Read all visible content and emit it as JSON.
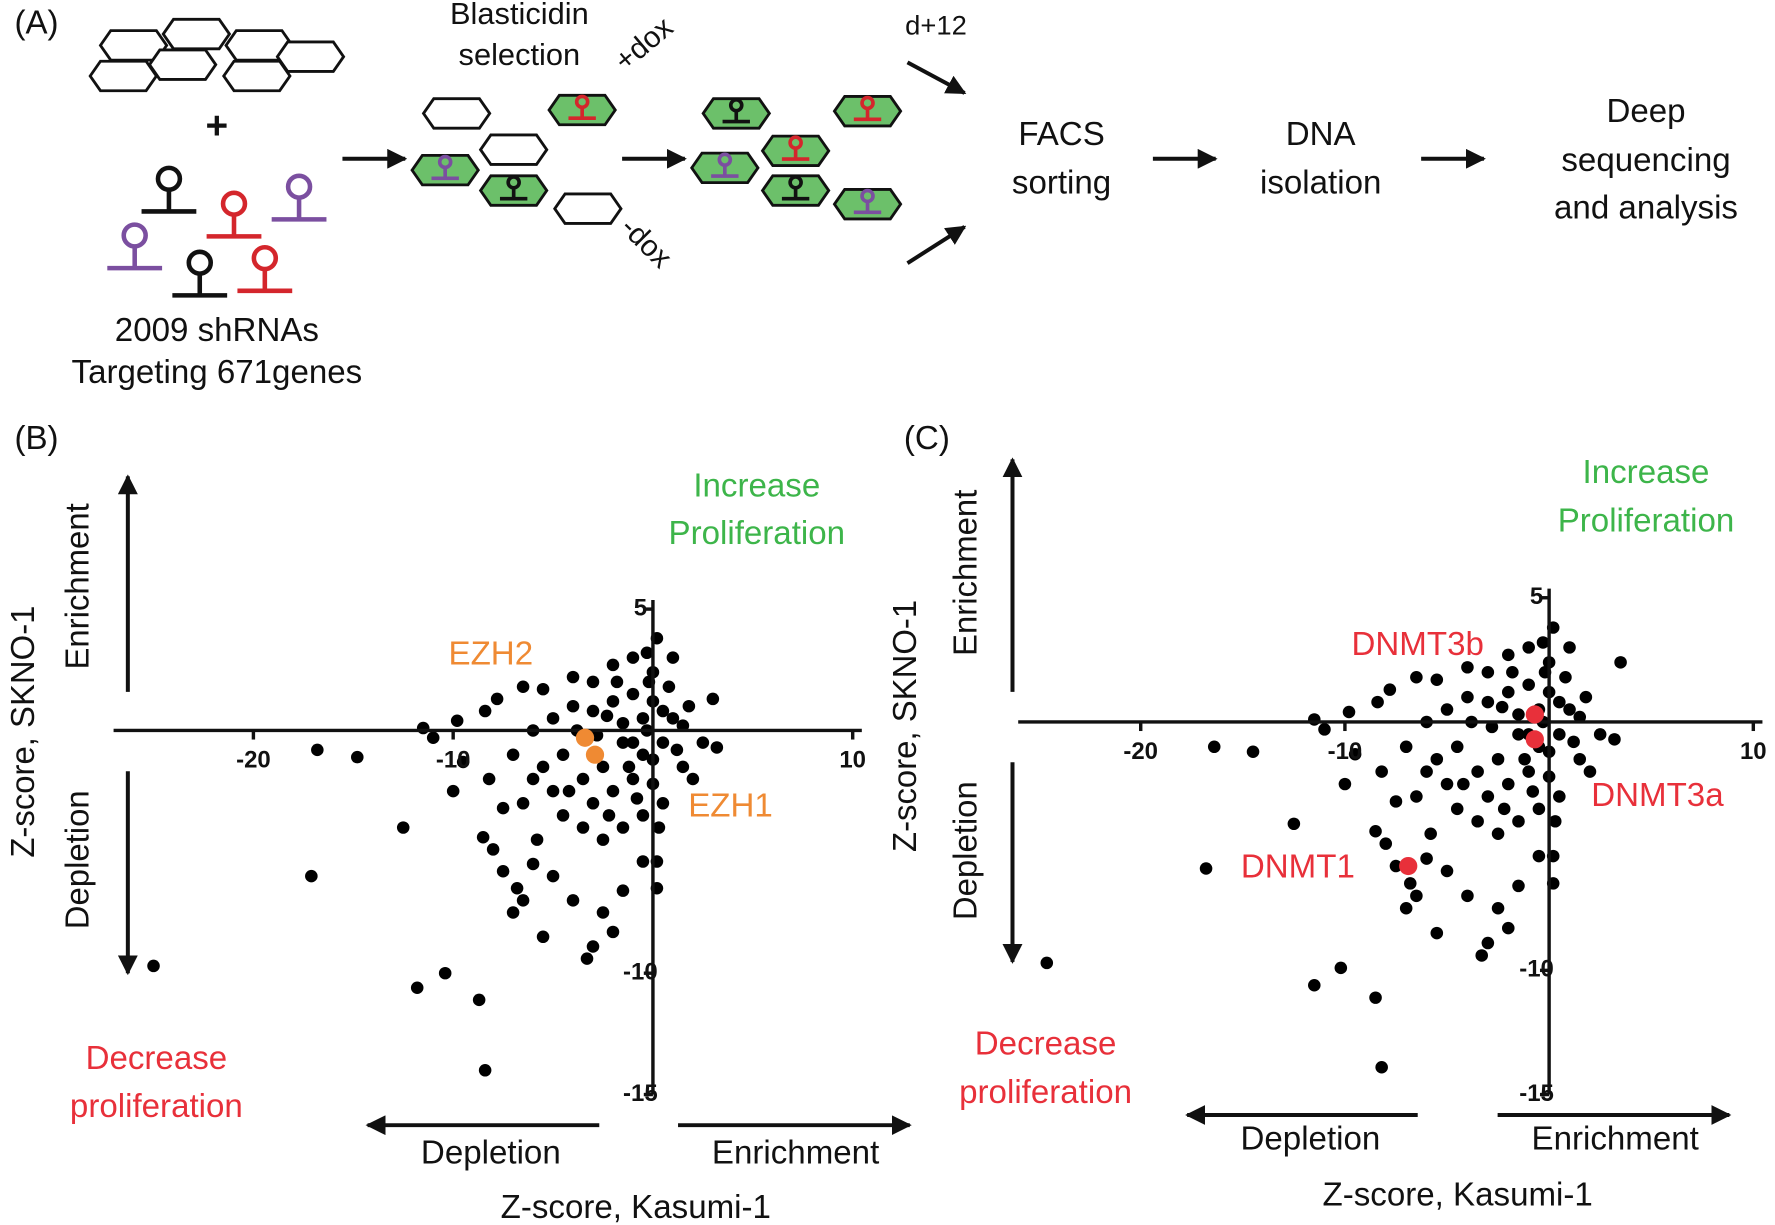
{
  "panel_a": {
    "label": "(A)",
    "plus": "+",
    "library": [
      "2009 shRNAs",
      "Targeting 671genes"
    ],
    "selection": [
      "Blasticidin",
      "selection"
    ],
    "plus_dox": "+dox",
    "minus_dox": "-dox",
    "day": "d+12",
    "facs": [
      "FACS",
      "sorting"
    ],
    "dna": [
      "DNA",
      "isolation"
    ],
    "sequencing": [
      "Deep",
      "sequencing",
      "and analysis"
    ]
  },
  "chart_data": [
    {
      "type": "scatter",
      "label": "(B)",
      "x_label": "Z-score, Kasumi-1",
      "y_label": "Z-score, SKNO-1",
      "up_label": "Enrichment",
      "down_label": "Depletion",
      "left_label": "Depletion",
      "right_label": "Enrichment",
      "increase_label": [
        "Increase",
        "Proliferation"
      ],
      "decrease_label": [
        "Decrease",
        "proliferation"
      ],
      "color": "#000000",
      "xlim": [
        -27,
        10
      ],
      "ylim": [
        -15,
        5
      ],
      "xticks": [
        -20,
        -10,
        10
      ],
      "yticks": [
        5,
        -10,
        -15
      ],
      "x": [
        -25,
        -17.1,
        -16.8,
        -14.8,
        -8.4,
        -8.7,
        -10.4,
        -11.8,
        -12.5,
        -11,
        -11.5,
        -9.8,
        -9.5,
        -10,
        -8.5,
        -8,
        -7.5,
        -6.8,
        -6.5,
        -7,
        -5.5,
        -3.3,
        -3,
        -2,
        -2.5,
        -4,
        -5,
        -6,
        -1.5,
        -0.5,
        0.2,
        -8.2,
        -8.4,
        -7.8,
        -6.5,
        -5.5,
        -4,
        -3,
        -2,
        -1,
        0,
        1,
        0.2,
        -0.3,
        1.8,
        3,
        2.5,
        3.2,
        1.5,
        2,
        0.5,
        -0.5,
        -1.5,
        -2.5,
        -3.5,
        -4.5,
        -5,
        -6,
        -7,
        -6,
        -5,
        -4,
        -3,
        -2,
        -1,
        0,
        1,
        0.5,
        -0.5,
        -1.5,
        -2.5,
        -3.5,
        -4.5,
        -1,
        0,
        -2,
        -3,
        -1.5,
        -0.5,
        -1,
        0.5,
        0.8,
        -0.2,
        -1.8,
        -2.8,
        -3.8,
        -4.2,
        -5.5,
        -6.5,
        1.2,
        1.5,
        0,
        -0.8,
        -2.2,
        -1.2,
        -0.3,
        -2.3,
        0.3,
        -7.5,
        -5.8,
        0.2
      ],
      "y": [
        -9.7,
        -6,
        -0.8,
        -1.1,
        -14,
        -11.1,
        -10,
        -10.6,
        -4,
        -0.3,
        0.1,
        0.4,
        -1.3,
        -2.5,
        -4.4,
        -4.9,
        -5.8,
        -6.5,
        -7,
        -7.5,
        -8.5,
        -9.4,
        -8.9,
        -8.3,
        -7.5,
        -7,
        -6,
        -5.5,
        -6.6,
        -5.4,
        -5.4,
        -2,
        0.8,
        1.3,
        1.8,
        1.7,
        2.2,
        2,
        2.7,
        3,
        2.4,
        3,
        3.8,
        3.2,
        1,
        1.3,
        -0.5,
        -0.7,
        -1.5,
        -2,
        -3,
        -3.5,
        -4,
        -4.5,
        -4,
        -3.5,
        -2.5,
        -2,
        -1,
        0,
        0.5,
        1,
        0.8,
        1.2,
        1.5,
        1.2,
        0.5,
        -0.5,
        -1,
        -0.5,
        -1.5,
        -2,
        -1,
        -2,
        -2.2,
        -2.5,
        -3,
        0.3,
        0.5,
        -0.5,
        0.8,
        1.8,
        2,
        2,
        -0.2,
        0,
        -2.5,
        -1.5,
        -3,
        -0.8,
        0.2,
        -1.2,
        -2.8,
        -3.5,
        -1.5,
        0,
        0.6,
        -4,
        -3.2,
        -4.5,
        -6.5
      ],
      "highlights": [
        {
          "label": "EZH2",
          "x": -3.4,
          "y": -0.3,
          "color": "#ef8a33"
        },
        {
          "label": "EZH1",
          "x": -2.9,
          "y": -1.0,
          "color": "#ef8a33"
        }
      ]
    },
    {
      "type": "scatter",
      "label": "(C)",
      "x_label": "Z-score, Kasumi-1",
      "y_label": "Z-score, SKNO-1",
      "up_label": "Enrichment",
      "down_label": "Depletion",
      "left_label": "Depletion",
      "right_label": "Enrichment",
      "increase_label": [
        "Increase",
        "Proliferation"
      ],
      "decrease_label": [
        "Decrease",
        "proliferation"
      ],
      "color": "#000000",
      "xlim": [
        -26,
        10
      ],
      "ylim": [
        -15,
        5
      ],
      "xticks": [
        -20,
        -10,
        10
      ],
      "yticks": [
        5,
        -10,
        -15
      ],
      "x": [
        -24.6,
        -16.8,
        -16.4,
        -14.5,
        -8.2,
        -8.5,
        -10.2,
        -11.5,
        -12.5,
        -11,
        -11.5,
        -9.8,
        -9.5,
        -10,
        -8.5,
        -8,
        -7.5,
        -6.8,
        -6.5,
        -7,
        -5.5,
        -3.3,
        -3,
        -2,
        -2.5,
        -4,
        -5,
        -6,
        -1.5,
        -0.5,
        0.2,
        -8.2,
        -8.4,
        -7.8,
        -6.5,
        -5.5,
        -4,
        -3,
        -2,
        -1,
        0,
        1,
        0.2,
        -0.3,
        1.8,
        3.5,
        2.5,
        3.2,
        1.5,
        2,
        0.5,
        -0.5,
        -1.5,
        -2.5,
        -3.5,
        -4.5,
        -5,
        -6,
        -7,
        -6,
        -5,
        -4,
        -3,
        -2,
        -1,
        0,
        1,
        0.5,
        -0.5,
        -1.5,
        -2.5,
        -3.5,
        -4.5,
        -1,
        0,
        -2,
        -3,
        -1.5,
        -0.5,
        -1,
        0.5,
        0.8,
        -0.2,
        -1.8,
        -2.8,
        -3.8,
        -4.2,
        -5.5,
        -6.5,
        1.2,
        1.5,
        0,
        -0.8,
        -2.2,
        -1.2,
        -0.3,
        -2.3,
        0.3,
        -7.5,
        -5.8,
        0.2
      ],
      "y": [
        -9.7,
        -5.9,
        -1,
        -1.2,
        -13.9,
        -11.1,
        -9.9,
        -10.6,
        -4.1,
        -0.3,
        0.1,
        0.4,
        -1.3,
        -2.5,
        -4.4,
        -4.9,
        -5.8,
        -6.5,
        -7,
        -7.5,
        -8.5,
        -9.4,
        -8.9,
        -8.3,
        -7.5,
        -7,
        -6,
        -5.5,
        -6.6,
        -5.4,
        -5.4,
        -2,
        0.8,
        1.3,
        1.8,
        1.7,
        2.2,
        2,
        2.7,
        3,
        2.4,
        3,
        3.8,
        3.2,
        1,
        2.4,
        -0.5,
        -0.7,
        -1.5,
        -2,
        -3,
        -3.5,
        -4,
        -4.5,
        -4,
        -3.5,
        -2.5,
        -2,
        -1,
        0,
        0.5,
        1,
        0.8,
        1.2,
        1.5,
        1.2,
        0.5,
        -0.5,
        -1,
        -0.5,
        -1.5,
        -2,
        -1,
        -2,
        -2.2,
        -2.5,
        -3,
        0.3,
        0.5,
        -0.5,
        0.8,
        1.8,
        2,
        2,
        -0.2,
        0,
        -2.5,
        -1.5,
        -3,
        -0.8,
        0.2,
        -1.2,
        -2.8,
        -3.5,
        -1.5,
        0,
        0.6,
        -4,
        -3.2,
        -4.5,
        -6.5
      ],
      "highlights": [
        {
          "label": "DNMT3b",
          "x": -0.7,
          "y": 0.3,
          "color": "#e8303a"
        },
        {
          "label": "DNMT3a",
          "x": -0.7,
          "y": -0.7,
          "color": "#e8303a"
        },
        {
          "label": "DNMT1",
          "x": -6.9,
          "y": -5.8,
          "color": "#e8303a"
        }
      ]
    }
  ]
}
